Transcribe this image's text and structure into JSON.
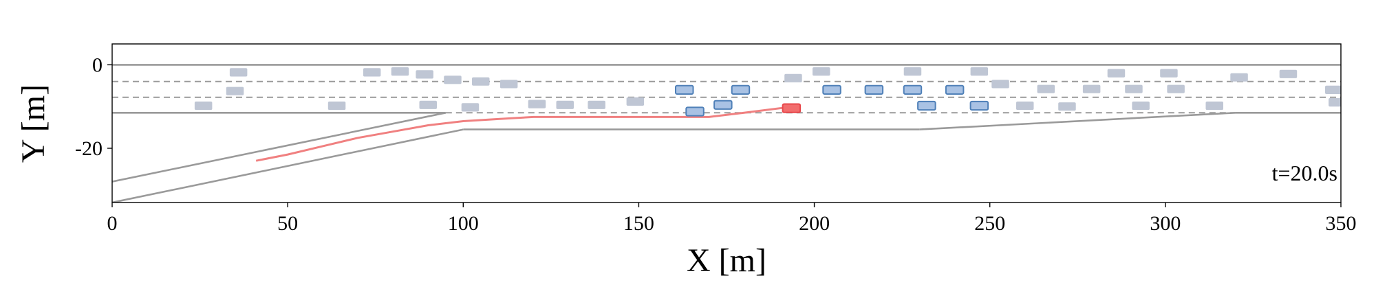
{
  "chart_data": {
    "type": "scatter",
    "xlabel": "X [m]",
    "ylabel": "Y [m]",
    "xlim": [
      0,
      350
    ],
    "ylim": [
      -33,
      5
    ],
    "xticks": [
      0,
      50,
      100,
      150,
      200,
      250,
      300,
      350
    ],
    "yticks": [
      0,
      -20
    ],
    "annotation": "t=20.0s",
    "colors": {
      "ego": "#e8464a",
      "ego_fill": "#f26d6d",
      "trajectory": "#f08080",
      "interacting": "#4f80b8",
      "interacting_fill": "#a9c2e4",
      "background_vehicle": "#bfc6d4",
      "road": "#9a9a9a"
    },
    "road": {
      "solid_lines": [
        [
          [
            0,
            0
          ],
          [
            350,
            0
          ]
        ],
        [
          [
            0,
            -11.5
          ],
          [
            95,
            -11.5
          ]
        ],
        [
          [
            320,
            -11.5
          ],
          [
            350,
            -11.5
          ]
        ],
        [
          [
            0,
            -28
          ],
          [
            95,
            -11.5
          ]
        ],
        [
          [
            0,
            -33
          ],
          [
            100,
            -15.5
          ]
        ],
        [
          [
            100,
            -15.5
          ],
          [
            230,
            -15.5
          ]
        ],
        [
          [
            230,
            -15.5
          ],
          [
            320,
            -11.5
          ]
        ]
      ],
      "dashed_lines": [
        [
          [
            0,
            -4
          ],
          [
            350,
            -4
          ]
        ],
        [
          [
            0,
            -7.8
          ],
          [
            350,
            -7.8
          ]
        ],
        [
          [
            95,
            -11.5
          ],
          [
            320,
            -11.5
          ]
        ]
      ]
    },
    "trajectory": [
      [
        41,
        -23
      ],
      [
        50,
        -21.5
      ],
      [
        60,
        -19.5
      ],
      [
        70,
        -17.5
      ],
      [
        80,
        -16
      ],
      [
        90,
        -14.5
      ],
      [
        100,
        -13.5
      ],
      [
        110,
        -13
      ],
      [
        120,
        -12.5
      ],
      [
        130,
        -12.5
      ],
      [
        140,
        -12.5
      ],
      [
        150,
        -12.5
      ],
      [
        160,
        -12.5
      ],
      [
        170,
        -12.5
      ],
      [
        180,
        -11.5
      ],
      [
        194,
        -10
      ]
    ],
    "ego_vehicle": {
      "x": 193.5,
      "y": -10.4
    },
    "interacting_vehicles": [
      {
        "x": 163,
        "y": -6
      },
      {
        "x": 166,
        "y": -11.2
      },
      {
        "x": 174,
        "y": -9.6
      },
      {
        "x": 179,
        "y": -6
      },
      {
        "x": 205,
        "y": -6
      },
      {
        "x": 217,
        "y": -6
      },
      {
        "x": 228,
        "y": -6
      },
      {
        "x": 232,
        "y": -9.8
      },
      {
        "x": 240,
        "y": -6
      },
      {
        "x": 247,
        "y": -9.8
      }
    ],
    "background_vehicles": [
      {
        "x": 26,
        "y": -9.8
      },
      {
        "x": 36,
        "y": -1.8
      },
      {
        "x": 35,
        "y": -6.3
      },
      {
        "x": 64,
        "y": -9.8
      },
      {
        "x": 74,
        "y": -1.8
      },
      {
        "x": 82,
        "y": -1.6
      },
      {
        "x": 89,
        "y": -2.3
      },
      {
        "x": 90,
        "y": -9.6
      },
      {
        "x": 97,
        "y": -3.6
      },
      {
        "x": 102,
        "y": -10.2
      },
      {
        "x": 105,
        "y": -4
      },
      {
        "x": 113,
        "y": -4.6
      },
      {
        "x": 121,
        "y": -9.4
      },
      {
        "x": 129,
        "y": -9.6
      },
      {
        "x": 138,
        "y": -9.6
      },
      {
        "x": 149,
        "y": -8.8
      },
      {
        "x": 194,
        "y": -3.2
      },
      {
        "x": 202,
        "y": -1.6
      },
      {
        "x": 228,
        "y": -1.6
      },
      {
        "x": 247,
        "y": -1.6
      },
      {
        "x": 253,
        "y": -4.6
      },
      {
        "x": 260,
        "y": -9.8
      },
      {
        "x": 266,
        "y": -5.8
      },
      {
        "x": 272,
        "y": -10
      },
      {
        "x": 279,
        "y": -5.8
      },
      {
        "x": 286,
        "y": -2
      },
      {
        "x": 291,
        "y": -5.8
      },
      {
        "x": 293,
        "y": -9.8
      },
      {
        "x": 301,
        "y": -2
      },
      {
        "x": 303,
        "y": -5.8
      },
      {
        "x": 314,
        "y": -9.8
      },
      {
        "x": 321,
        "y": -3
      },
      {
        "x": 335,
        "y": -2.2
      },
      {
        "x": 348,
        "y": -6
      },
      {
        "x": 349,
        "y": -9
      }
    ]
  }
}
